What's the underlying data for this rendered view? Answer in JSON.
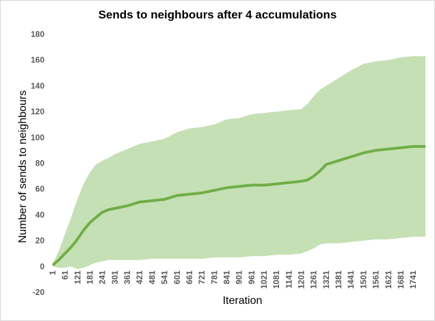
{
  "chart_data": {
    "type": "area",
    "title": "Sends to neighbours after 4 accumulations",
    "xlabel": "Iteration",
    "ylabel": "Number of sends to neighbours",
    "ylim": [
      -20,
      180
    ],
    "yticks": [
      "-20",
      "0",
      "20",
      "40",
      "60",
      "80",
      "100",
      "120",
      "140",
      "160",
      "180"
    ],
    "xlim": [
      1,
      1800
    ],
    "xticks": [
      "1",
      "61",
      "121",
      "181",
      "241",
      "301",
      "361",
      "421",
      "481",
      "541",
      "601",
      "661",
      "721",
      "781",
      "841",
      "901",
      "961",
      "1021",
      "1081",
      "1141",
      "1201",
      "1261",
      "1321",
      "1381",
      "1441",
      "1501",
      "1561",
      "1621",
      "1681",
      "1741"
    ],
    "grid": false,
    "legend": "none",
    "colors": {
      "mean_line": "#70ad47",
      "band": "#c5e0b4"
    },
    "series": [
      {
        "role": "mean",
        "x": [
          1,
          30,
          60,
          90,
          120,
          150,
          181,
          210,
          241,
          270,
          301,
          361,
          421,
          481,
          541,
          601,
          661,
          721,
          781,
          841,
          901,
          961,
          1021,
          1081,
          1141,
          1201,
          1231,
          1261,
          1291,
          1321,
          1381,
          1441,
          1501,
          1561,
          1621,
          1681,
          1741,
          1800
        ],
        "values": [
          1,
          5,
          10,
          15,
          21,
          28,
          34,
          38,
          42,
          44,
          45,
          47,
          50,
          51,
          52,
          55,
          56,
          57,
          59,
          61,
          62,
          63,
          63,
          64,
          65,
          66,
          67,
          70,
          74,
          79,
          82,
          85,
          88,
          90,
          91,
          92,
          93,
          93
        ]
      },
      {
        "role": "upper",
        "x": [
          1,
          30,
          60,
          90,
          120,
          150,
          181,
          210,
          241,
          270,
          301,
          361,
          421,
          481,
          541,
          601,
          661,
          721,
          781,
          841,
          901,
          961,
          1021,
          1081,
          1141,
          1201,
          1231,
          1261,
          1291,
          1321,
          1381,
          1441,
          1501,
          1561,
          1621,
          1681,
          1741,
          1800
        ],
        "values": [
          2,
          12,
          25,
          38,
          52,
          64,
          73,
          79,
          82,
          84,
          87,
          91,
          95,
          97,
          99,
          104,
          107,
          108,
          110,
          114,
          115,
          118,
          119,
          120,
          121,
          122,
          126,
          132,
          137,
          140,
          146,
          152,
          157,
          159,
          160,
          162,
          163,
          163
        ]
      },
      {
        "role": "lower",
        "x": [
          1,
          30,
          60,
          90,
          120,
          150,
          181,
          210,
          241,
          270,
          301,
          361,
          421,
          481,
          541,
          601,
          661,
          721,
          781,
          841,
          901,
          961,
          1021,
          1081,
          1141,
          1201,
          1231,
          1261,
          1291,
          1321,
          1381,
          1441,
          1501,
          1561,
          1621,
          1681,
          1741,
          1800
        ],
        "values": [
          0,
          -1,
          -1,
          0,
          -2,
          -1,
          1,
          3,
          4,
          5,
          5,
          5,
          5,
          6,
          6,
          6,
          6,
          6,
          7,
          7,
          7,
          8,
          8,
          9,
          9,
          10,
          12,
          14,
          17,
          18,
          18,
          19,
          20,
          21,
          21,
          22,
          23,
          23
        ]
      }
    ]
  }
}
